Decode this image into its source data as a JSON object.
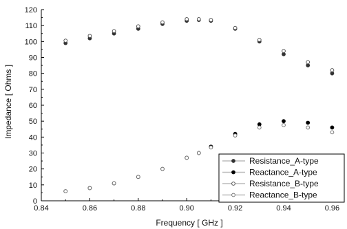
{
  "chart_data": {
    "type": "scatter",
    "title": "",
    "xlabel": "Frequency [ GHz ]",
    "ylabel": "Impedance [ Ohms ]",
    "xlim": [
      0.84,
      0.965
    ],
    "ylim": [
      0,
      120
    ],
    "x_ticks": [
      0.84,
      0.86,
      0.88,
      0.9,
      0.92,
      0.94,
      0.96
    ],
    "x_tick_labels": [
      "0.84",
      "0.86",
      "0.88",
      "0.90",
      "0.92",
      "0.94",
      "0.96"
    ],
    "y_ticks": [
      0,
      10,
      20,
      30,
      40,
      50,
      60,
      70,
      80,
      90,
      100,
      110,
      120
    ],
    "y_tick_labels": [
      "0",
      "10",
      "20",
      "30",
      "40",
      "50",
      "60",
      "70",
      "80",
      "90",
      "100",
      "110",
      "120"
    ],
    "grid": false,
    "legend_position": "bottom-right",
    "x": [
      0.85,
      0.86,
      0.87,
      0.88,
      0.89,
      0.9,
      0.905,
      0.91,
      0.92,
      0.93,
      0.94,
      0.95,
      0.96
    ],
    "series": [
      {
        "name": "Resistance_A-type",
        "marker": "filled",
        "color": "#333333",
        "values": [
          99,
          102,
          105,
          108,
          111,
          113,
          113.5,
          113,
          108,
          100,
          92,
          85,
          80
        ]
      },
      {
        "name": "Reactance_A-type",
        "marker": "filled",
        "color": "#000000",
        "values": [
          6,
          8,
          11,
          15,
          20,
          27,
          30,
          34,
          42,
          48,
          50,
          49,
          46
        ]
      },
      {
        "name": "Resistance_B-type",
        "marker": "open",
        "color": "#555555",
        "values": [
          100.5,
          103.5,
          106.5,
          109.5,
          112,
          114,
          114,
          113.5,
          108.5,
          101,
          94,
          87,
          82
        ]
      },
      {
        "name": "Reactance_B-type",
        "marker": "open",
        "color": "#777777",
        "values": [
          6,
          8,
          11,
          15,
          20,
          27,
          30,
          33.5,
          41,
          46,
          47.5,
          46,
          43
        ]
      }
    ]
  }
}
